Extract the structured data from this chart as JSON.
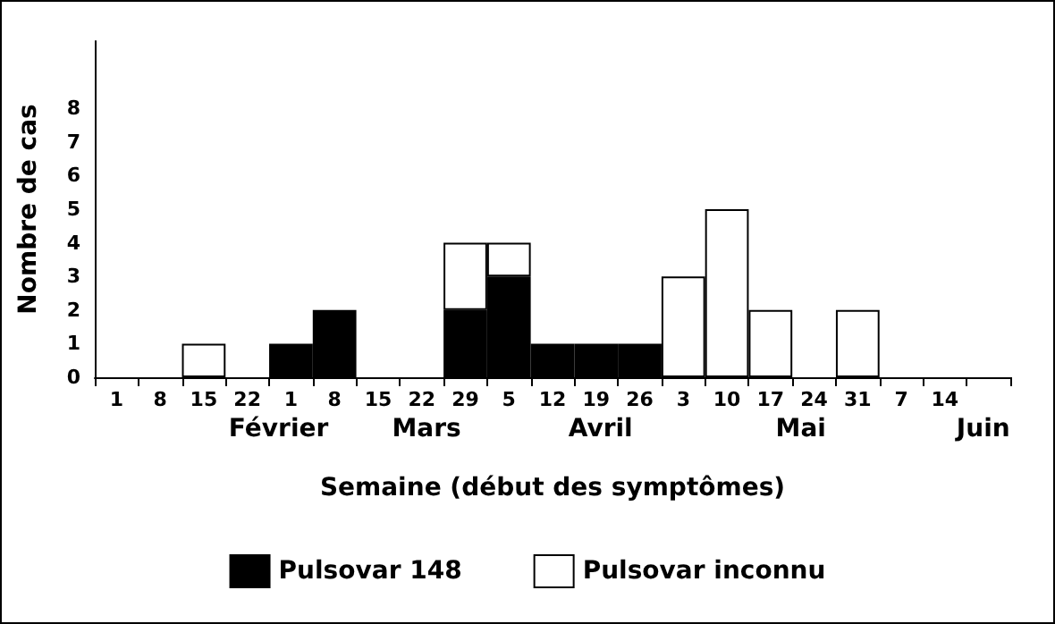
{
  "chart_data": {
    "type": "bar",
    "stacked": true,
    "xlabel": "Semaine (début des symptômes)",
    "ylabel": "Nombre de cas",
    "categories": [
      "1",
      "8",
      "15",
      "22",
      "1",
      "8",
      "15",
      "22",
      "29",
      "5",
      "12",
      "19",
      "26",
      "3",
      "10",
      "17",
      "24",
      "31",
      "7",
      "14",
      null
    ],
    "series": [
      {
        "name": "Pulsovar 148",
        "color": "#000000",
        "values": [
          0,
          0,
          0,
          0,
          1,
          2,
          0,
          0,
          2,
          3,
          1,
          1,
          1,
          0,
          0,
          0,
          0,
          0,
          0,
          0,
          0
        ]
      },
      {
        "name": "Pulsovar inconnu",
        "color": "#ffffff",
        "values": [
          0,
          0,
          1,
          0,
          0,
          0,
          0,
          0,
          2,
          1,
          0,
          0,
          0,
          3,
          5,
          2,
          0,
          2,
          0,
          0,
          0
        ]
      }
    ],
    "ylim": [
      0,
      10
    ],
    "yticks": [
      0,
      1,
      2,
      3,
      4,
      5,
      6,
      7,
      8
    ],
    "annotations": [
      "Février",
      "Mars",
      "Avril",
      "Mai",
      "Juin"
    ],
    "grid": false,
    "legend": "bottom"
  }
}
